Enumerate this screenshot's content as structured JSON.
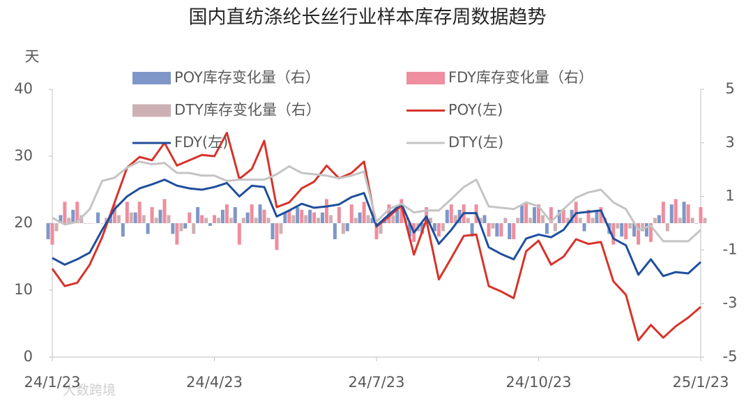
{
  "chart_data": {
    "type": "combo",
    "title": "国内直纺涤纶长丝行业样本库存周数据趋势",
    "y_label": "天",
    "watermark": "大数跨境",
    "categories": [
      "24/1/23",
      null,
      null,
      null,
      null,
      null,
      null,
      null,
      null,
      null,
      null,
      null,
      null,
      "24/4/23",
      null,
      null,
      null,
      null,
      null,
      null,
      null,
      null,
      null,
      null,
      null,
      null,
      "24/7/23",
      null,
      null,
      null,
      null,
      null,
      null,
      null,
      null,
      null,
      null,
      null,
      null,
      "24/10/23",
      null,
      null,
      null,
      null,
      null,
      null,
      null,
      null,
      null,
      null,
      null,
      null,
      "25/1/23"
    ],
    "ylim": [
      0,
      40
    ],
    "yticks": [
      0,
      10,
      20,
      30,
      40
    ],
    "y2lim": [
      -5,
      5
    ],
    "y2ticks": [
      5,
      3,
      1,
      -1,
      -3,
      -5
    ],
    "series": [
      {
        "name": "POY库存变化量（右）",
        "type": "bar",
        "axis": "y2",
        "color": "#7f97c8",
        "values": [
          -0.6,
          0.3,
          0.5,
          0,
          0.4,
          0.3,
          -0.5,
          0.4,
          -0.4,
          0.5,
          -0.4,
          -0.2,
          0.6,
          -0.1,
          0.5,
          0.6,
          0.4,
          0.7,
          -0.6,
          0.4,
          0.6,
          0.5,
          0.4,
          -0.6,
          -0.3,
          0.4,
          0.2,
          0.2,
          0.5,
          -0.5,
          -0.4,
          -0.3,
          0.5,
          0.5,
          -0.5,
          0.3,
          -0.5,
          -0.6,
          0.7,
          0.6,
          -0.4,
          0.5,
          0.5,
          -0.3,
          0.5,
          -0.4,
          -0.5,
          -0.5,
          -0.5,
          0.3,
          0.7,
          0.8,
          0
        ]
      },
      {
        "name": "FDY库存变化量（右）",
        "type": "bar",
        "axis": "y2",
        "color": "#ee8e9e",
        "values": [
          -0.8,
          0.8,
          0.8,
          0,
          0,
          0.7,
          0.8,
          0.8,
          0.6,
          0.9,
          -0.8,
          0.4,
          0.3,
          0.3,
          0.7,
          -0.8,
          0.7,
          0.5,
          -1.0,
          0.5,
          0.5,
          0.4,
          0.9,
          0.6,
          0.7,
          0.8,
          -0.6,
          0.7,
          0.9,
          -0.7,
          0.6,
          -0.5,
          0.7,
          0.7,
          0.7,
          -0.5,
          -0.5,
          -0.6,
          0.8,
          0.7,
          0.6,
          0.5,
          0.8,
          0.5,
          0.6,
          -0.8,
          -0.6,
          -0.8,
          -0.7,
          0.8,
          0.9,
          0.7,
          0.6
        ]
      },
      {
        "name": "DTY库存变化量（右）",
        "type": "bar",
        "axis": "y2",
        "color": "#cdb0b4",
        "values": [
          -0.3,
          0.2,
          0.3,
          0,
          0.2,
          0.3,
          0.4,
          0.3,
          0.2,
          0.3,
          -0.3,
          -0.4,
          0.2,
          0.2,
          0.2,
          0.2,
          0.2,
          0.2,
          -0.4,
          0.3,
          0.3,
          0.2,
          0.3,
          -0.4,
          0.2,
          0.3,
          -0.4,
          0.3,
          0.2,
          -0.3,
          0.2,
          -0.3,
          0.3,
          0.2,
          0.2,
          -0.2,
          0.2,
          0.2,
          0.2,
          0.3,
          -0.3,
          0.2,
          0.2,
          0.2,
          0.2,
          -0.2,
          -0.2,
          -0.3,
          0.2,
          -0.3,
          0.2,
          0.2,
          0.2
        ]
      },
      {
        "name": "POY(左)",
        "type": "line",
        "axis": "y",
        "color": "#d7332a",
        "values": [
          13.2,
          10.6,
          11.1,
          13.8,
          17.9,
          23.1,
          28.3,
          29.9,
          29.4,
          32.0,
          28.6,
          29.4,
          30.2,
          30.0,
          33.5,
          26.6,
          28.1,
          32.3,
          22.4,
          23.1,
          25.2,
          26.2,
          28.6,
          26.7,
          27.5,
          29.2,
          19.5,
          21.0,
          22.6,
          15.3,
          20.5,
          11.6,
          14.8,
          18.1,
          18.3,
          10.6,
          9.8,
          8.8,
          15.8,
          17.4,
          13.8,
          15.0,
          17.6,
          16.9,
          17.2,
          11.3,
          9.3,
          2.5,
          4.8,
          2.9,
          4.6,
          5.9,
          7.5
        ]
      },
      {
        "name": "FDY(左)",
        "type": "line",
        "axis": "y",
        "color": "#1f4e9c",
        "values": [
          14.8,
          13.8,
          14.6,
          15.6,
          19.0,
          22.1,
          24.0,
          25.2,
          25.8,
          26.5,
          25.6,
          25.2,
          25.0,
          25.4,
          26.0,
          24.0,
          25.6,
          25.4,
          21.0,
          21.9,
          22.9,
          22.3,
          22.5,
          22.8,
          23.9,
          24.5,
          19.6,
          21.3,
          22.9,
          18.6,
          21.0,
          16.9,
          19.0,
          21.5,
          21.5,
          16.4,
          15.4,
          14.6,
          17.7,
          18.3,
          17.9,
          19.0,
          21.5,
          21.7,
          21.9,
          17.7,
          16.7,
          12.3,
          14.6,
          12.1,
          12.7,
          12.5,
          14.2
        ]
      },
      {
        "name": "DTY(左)",
        "type": "line",
        "axis": "y",
        "color": "#c4c4c4",
        "values": [
          20.8,
          19.8,
          20.2,
          22.1,
          26.3,
          26.8,
          28.3,
          29.2,
          28.8,
          29.0,
          27.5,
          27.5,
          27.1,
          27.1,
          26.3,
          26.5,
          26.5,
          26.5,
          27.3,
          28.5,
          27.5,
          27.3,
          27.1,
          26.7,
          27.1,
          27.7,
          20.2,
          22.1,
          22.9,
          21.6,
          21.9,
          21.9,
          23.6,
          25.4,
          26.5,
          22.5,
          22.3,
          22.1,
          23.1,
          22.5,
          20.2,
          22.1,
          23.8,
          24.6,
          25.0,
          23.1,
          22.1,
          19.0,
          19.6,
          17.3,
          17.3,
          17.3,
          19.0
        ]
      }
    ]
  }
}
